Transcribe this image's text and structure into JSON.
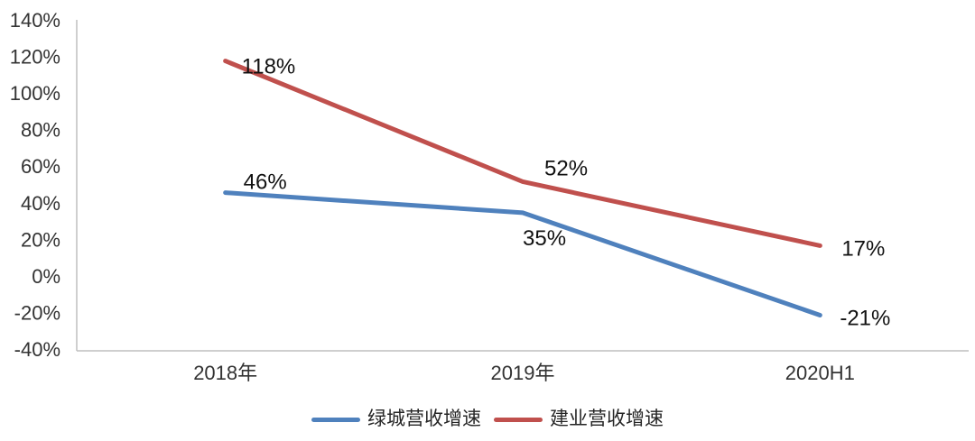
{
  "chart_data": {
    "type": "line",
    "title": "",
    "xlabel": "",
    "ylabel": "",
    "categories": [
      "2018年",
      "2019年",
      "2020H1"
    ],
    "series": [
      {
        "name": "绿城营收增速",
        "color": "#4F81BD",
        "values": [
          46,
          35,
          -21
        ],
        "point_labels": [
          "46%",
          "35%",
          "-21%"
        ]
      },
      {
        "name": "建业营收增速",
        "color": "#C0504D",
        "values": [
          118,
          52,
          17
        ],
        "point_labels": [
          "118%",
          "52%",
          "17%"
        ]
      }
    ],
    "ylim": [
      -40,
      140
    ],
    "ytick_step": 20,
    "ytick_labels": [
      "140%",
      "120%",
      "100%",
      "80%",
      "60%",
      "40%",
      "20%",
      "0%",
      "-20%",
      "-40%"
    ],
    "grid": false,
    "legend_position": "bottom",
    "axis_color": "#BFBFBF",
    "tick_text_color": "#333333",
    "data_label_color": "#111111"
  }
}
